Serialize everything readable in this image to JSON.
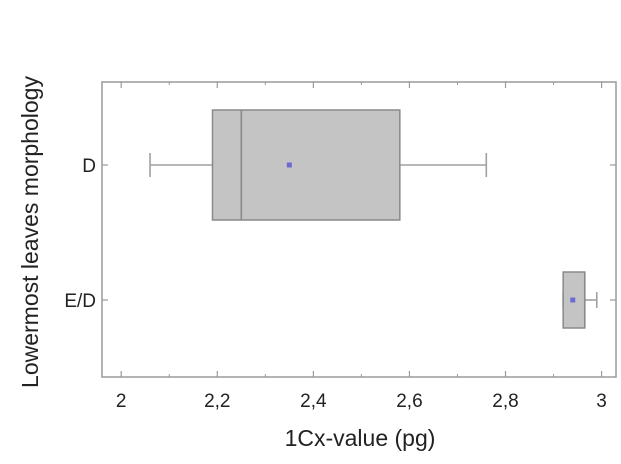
{
  "chart_data": {
    "type": "boxplot",
    "title": "",
    "xlabel": "1Cx-value (pg)",
    "ylabel": "Lowermost leaves morphology",
    "xlim": [
      1.96,
      3.03
    ],
    "xticks": [
      2,
      2.2,
      2.4,
      2.6,
      2.8,
      3
    ],
    "xtick_labels": [
      "2",
      "2,2",
      "2,4",
      "2,6",
      "2,8",
      "3"
    ],
    "grid": false,
    "categories": [
      "D",
      "E/D"
    ],
    "boxes": [
      {
        "category": "D",
        "min": 2.06,
        "q1": 2.19,
        "median": 2.25,
        "q3": 2.58,
        "max": 2.76,
        "mean": 2.35
      },
      {
        "category": "E/D",
        "min": 2.92,
        "q1": 2.92,
        "median": 2.965,
        "q3": 2.965,
        "max": 2.99,
        "mean": 2.94
      }
    ],
    "colors": {
      "box_fill": "#c4c4c4",
      "box_stroke": "#8a8a8a",
      "whisker": "#a0a0a0",
      "mean_marker": "#6b6bcf",
      "axis": "#9a9a9a"
    }
  }
}
